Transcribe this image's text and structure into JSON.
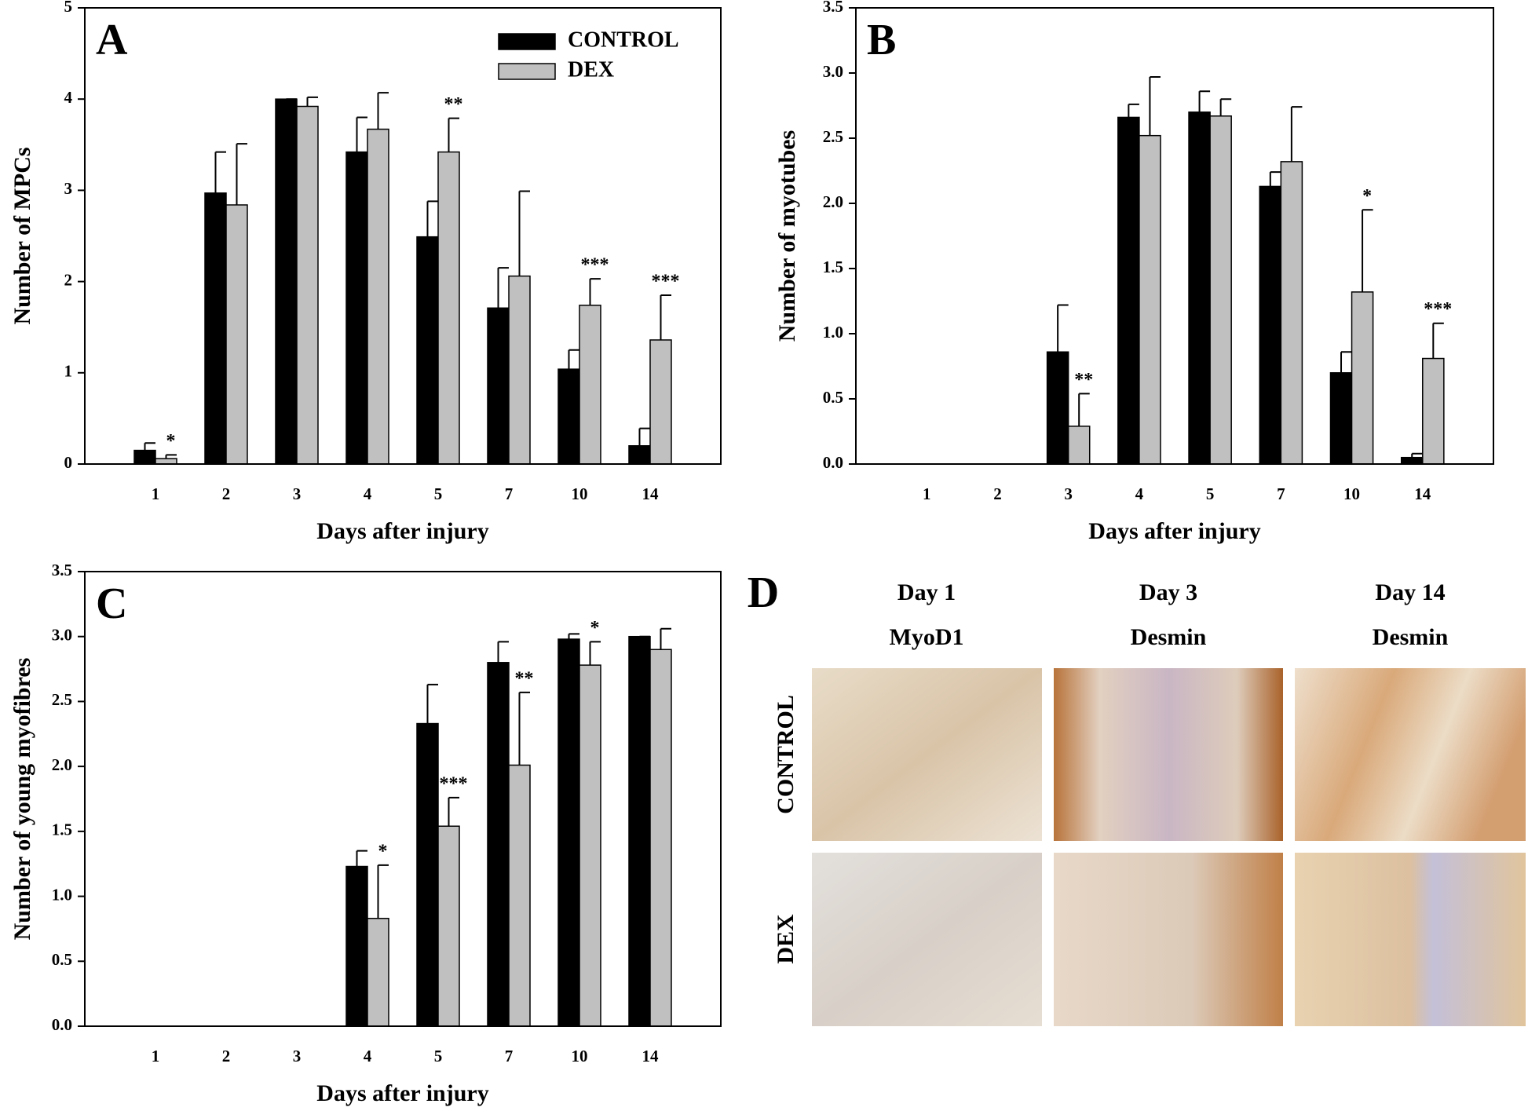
{
  "chart_data": [
    {
      "type": "bar",
      "panel_label": "A",
      "xlabel": "Days after injury",
      "ylabel": "Number of MPCs",
      "categories": [
        "1",
        "2",
        "3",
        "4",
        "5",
        "7",
        "10",
        "14"
      ],
      "series": [
        {
          "name": "CONTROL",
          "color": "#000000",
          "values": [
            0.15,
            2.97,
            4.0,
            3.42,
            2.49,
            1.71,
            1.04,
            0.2
          ],
          "errors": [
            0.08,
            0.45,
            0,
            0.38,
            0.39,
            0.44,
            0.21,
            0.19
          ]
        },
        {
          "name": "DEX",
          "color": "#c0c0c0",
          "values": [
            0.06,
            2.84,
            3.92,
            3.67,
            3.42,
            2.06,
            1.74,
            1.36
          ],
          "errors": [
            0.04,
            0.67,
            0.1,
            0.4,
            0.37,
            0.93,
            0.29,
            0.49
          ],
          "significance": [
            "*",
            null,
            null,
            null,
            "**",
            null,
            "***",
            "***"
          ]
        }
      ],
      "ylim": [
        0,
        5
      ],
      "yticks": [
        0,
        1,
        2,
        3,
        4,
        5
      ],
      "legend": "upper right"
    },
    {
      "type": "bar",
      "panel_label": "B",
      "xlabel": "Days after injury",
      "ylabel": "Number of myotubes",
      "categories": [
        "1",
        "2",
        "3",
        "4",
        "5",
        "7",
        "10",
        "14"
      ],
      "series": [
        {
          "color": "#000000",
          "values": [
            0,
            0,
            0.86,
            2.66,
            2.7,
            2.13,
            0.7,
            0.05
          ],
          "errors": [
            0,
            0,
            0.36,
            0.1,
            0.16,
            0.11,
            0.16,
            0.03
          ]
        },
        {
          "color": "#c0c0c0",
          "values": [
            0,
            0,
            0.29,
            2.52,
            2.67,
            2.32,
            1.32,
            0.81
          ],
          "errors": [
            0,
            0,
            0.25,
            0.45,
            0.13,
            0.42,
            0.63,
            0.27
          ],
          "significance": [
            null,
            null,
            "**",
            null,
            null,
            null,
            "*",
            "***"
          ]
        }
      ],
      "ylim": [
        0,
        3.5
      ],
      "yticks": [
        {
          "value": 0,
          "label": "0.0"
        },
        0.5,
        {
          "value": 1,
          "label": "1.0"
        },
        1.5,
        {
          "value": 2,
          "label": "2.0"
        },
        2.5,
        {
          "value": 3,
          "label": "3.0"
        },
        3.5
      ]
    },
    {
      "type": "bar",
      "panel_label": "C",
      "xlabel": "Days after injury",
      "ylabel": "Number of young myofibres",
      "categories": [
        "1",
        "2",
        "3",
        "4",
        "5",
        "7",
        "10",
        "14"
      ],
      "series": [
        {
          "color": "#000000",
          "values": [
            0,
            0,
            0,
            1.23,
            2.33,
            2.8,
            2.98,
            3.0
          ],
          "errors": [
            0,
            0,
            0,
            0.12,
            0.3,
            0.16,
            0.04,
            0
          ]
        },
        {
          "color": "#c0c0c0",
          "values": [
            0,
            0,
            0,
            0.83,
            1.54,
            2.01,
            2.78,
            2.9
          ],
          "errors": [
            0,
            0,
            0,
            0.41,
            0.22,
            0.56,
            0.18,
            0.16
          ],
          "significance": [
            null,
            null,
            null,
            "*",
            "***",
            "**",
            "*",
            null
          ]
        }
      ],
      "ylim": [
        0,
        3.5
      ],
      "yticks": [
        {
          "value": 0,
          "label": "0.0"
        },
        0.5,
        {
          "value": 1,
          "label": "1.0"
        },
        1.5,
        {
          "value": 2,
          "label": "2.0"
        },
        2.5,
        {
          "value": 3,
          "label": "3.0"
        },
        3.5
      ]
    }
  ],
  "panel_d": {
    "label": "D",
    "columns": [
      {
        "day": "Day 1",
        "stain": "MyoD1"
      },
      {
        "day": "Day 3",
        "stain": "Desmin"
      },
      {
        "day": "Day 14",
        "stain": "Desmin"
      }
    ],
    "rows": [
      "CONTROL",
      "DEX"
    ]
  }
}
